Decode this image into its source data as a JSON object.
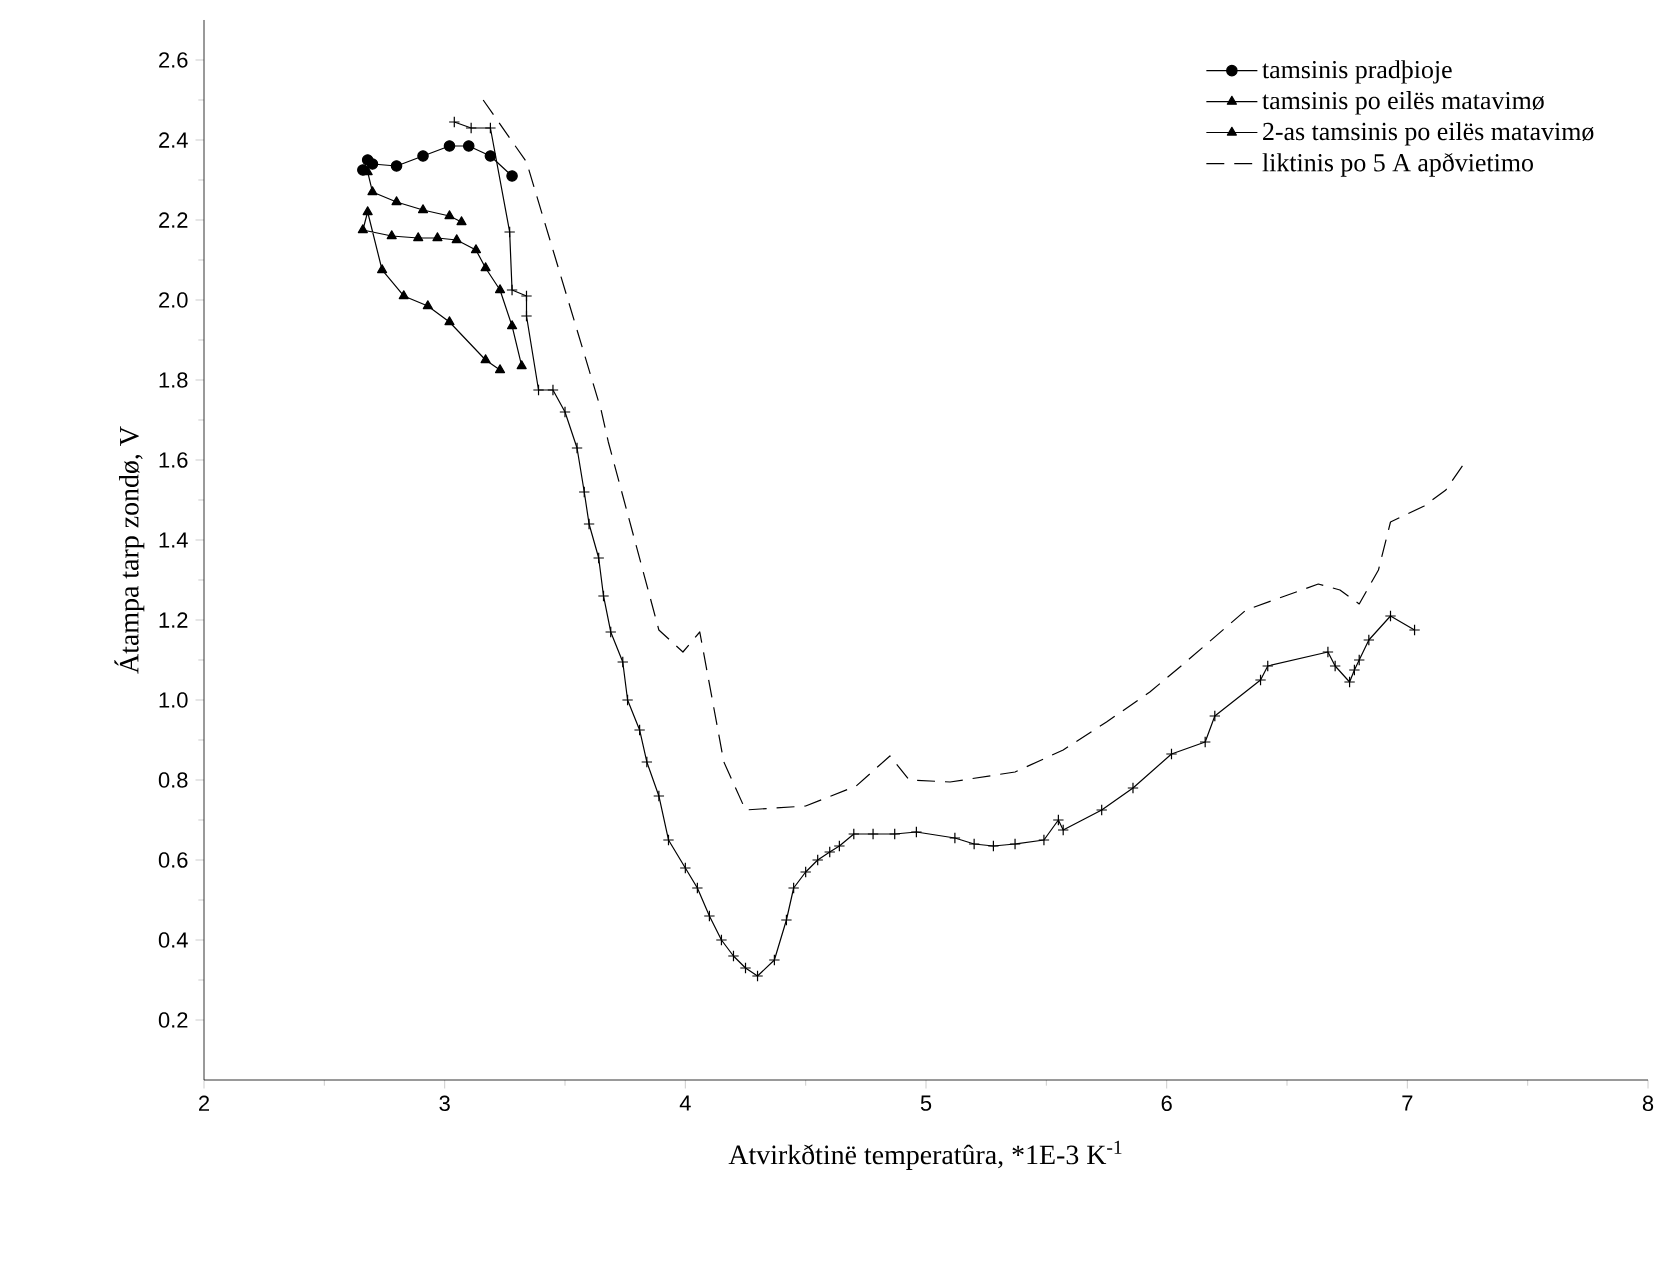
{
  "chart_data": {
    "type": "line",
    "xlabel": "Atvirkðtinë temperatûra, *1E-3 K$^{-1}$",
    "ylabel": "Átampa tarp zondø, V",
    "xlim": [
      2,
      8
    ],
    "ylim": [
      0.05,
      2.7
    ],
    "xticks": [
      2,
      3,
      4,
      5,
      6,
      7,
      8
    ],
    "yticks": [
      0.2,
      0.4,
      0.6,
      0.8,
      {
        "value": 1,
        "label": "1.0"
      },
      1.2,
      1.4,
      1.6,
      1.8,
      {
        "value": 2,
        "label": "2.0"
      },
      2.2,
      2.4,
      2.6
    ],
    "legend": "top right",
    "series": [
      {
        "name": "tamsinis pradþioje",
        "color": "#000000",
        "marker": "circle",
        "x": [
          2.68,
          2.66,
          2.7,
          2.8,
          2.91,
          3.02,
          3.1,
          3.19,
          3.28
        ],
        "values": [
          2.35,
          2.325,
          2.34,
          2.335,
          2.36,
          2.385,
          2.385,
          2.36,
          2.31
        ]
      },
      {
        "name": "tamsinis po eilës matavimø",
        "color": "#000000",
        "marker": "triangle",
        "x": [
          2.68,
          2.7,
          2.8,
          2.91,
          3.02,
          3.07
        ],
        "values": [
          2.32,
          2.27,
          2.245,
          2.225,
          2.21,
          2.195
        ]
      },
      {
        "name": "2-as tamsinis po eilës matavimø",
        "color": "#000000",
        "marker": "triangle",
        "x": [
          3.23,
          3.17,
          3.02,
          2.93,
          2.83,
          2.74,
          2.68,
          2.66,
          2.78,
          2.89,
          2.97,
          3.05,
          3.13,
          3.17,
          3.23,
          3.28,
          3.32
        ],
        "values": [
          1.825,
          1.85,
          1.945,
          1.985,
          2.01,
          2.075,
          2.22,
          2.175,
          2.16,
          2.155,
          2.155,
          2.15,
          2.125,
          2.08,
          2.025,
          1.935,
          1.835
        ]
      },
      {
        "name": "liktinis po 5 A apðvietimo",
        "color": "#000000",
        "marker": "none",
        "line_style": "dashed",
        "x": [
          3.16,
          3.34,
          3.65,
          3.68,
          3.89,
          3.99,
          4.06,
          4.16,
          4.25,
          4.5,
          4.71,
          4.85,
          4.93,
          5.1,
          5.37,
          5.57,
          5.75,
          5.93,
          6.06,
          6.33,
          6.63,
          6.72,
          6.8,
          6.88,
          6.93,
          7.07,
          7.16,
          7.24
        ],
        "values": [
          2.5,
          2.345,
          1.725,
          1.645,
          1.175,
          1.12,
          1.17,
          0.845,
          0.725,
          0.735,
          0.785,
          0.86,
          0.8,
          0.795,
          0.82,
          0.875,
          0.945,
          1.02,
          1.085,
          1.225,
          1.29,
          1.275,
          1.24,
          1.325,
          1.445,
          1.485,
          1.525,
          1.595
        ]
      },
      {
        "color": "#000000",
        "marker": "cross",
        "x": [
          3.04,
          3.11,
          3.19,
          3.27,
          3.28,
          3.34,
          3.34,
          3.39,
          3.45,
          3.5,
          3.55,
          3.58,
          3.6,
          3.64,
          3.66,
          3.69,
          3.74,
          3.76,
          3.81,
          3.84,
          3.89,
          3.93,
          4.0,
          4.05,
          4.1,
          4.15,
          4.2,
          4.25,
          4.3,
          4.37,
          4.42,
          4.45,
          4.5,
          4.55,
          4.6,
          4.64,
          4.7,
          4.78,
          4.87,
          4.96,
          5.12,
          5.2,
          5.28,
          5.37,
          5.49,
          5.55,
          5.57,
          5.73,
          5.86,
          6.02,
          6.16,
          6.2,
          6.39,
          6.42,
          6.67,
          6.7,
          6.76,
          6.78,
          6.8,
          6.84,
          6.93,
          7.03
        ],
        "values": [
          2.445,
          2.43,
          2.43,
          2.17,
          2.025,
          2.01,
          1.96,
          1.775,
          1.775,
          1.72,
          1.63,
          1.52,
          1.44,
          1.355,
          1.26,
          1.17,
          1.095,
          1.0,
          0.925,
          0.845,
          0.76,
          0.65,
          0.58,
          0.53,
          0.46,
          0.4,
          0.36,
          0.33,
          0.31,
          0.35,
          0.45,
          0.53,
          0.57,
          0.6,
          0.62,
          0.635,
          0.665,
          0.665,
          0.665,
          0.67,
          0.655,
          0.64,
          0.635,
          0.64,
          0.65,
          0.7,
          0.675,
          0.725,
          0.78,
          0.865,
          0.895,
          0.96,
          1.05,
          1.085,
          1.12,
          1.085,
          1.045,
          1.075,
          1.1,
          1.15,
          1.21,
          1.175
        ]
      }
    ]
  }
}
